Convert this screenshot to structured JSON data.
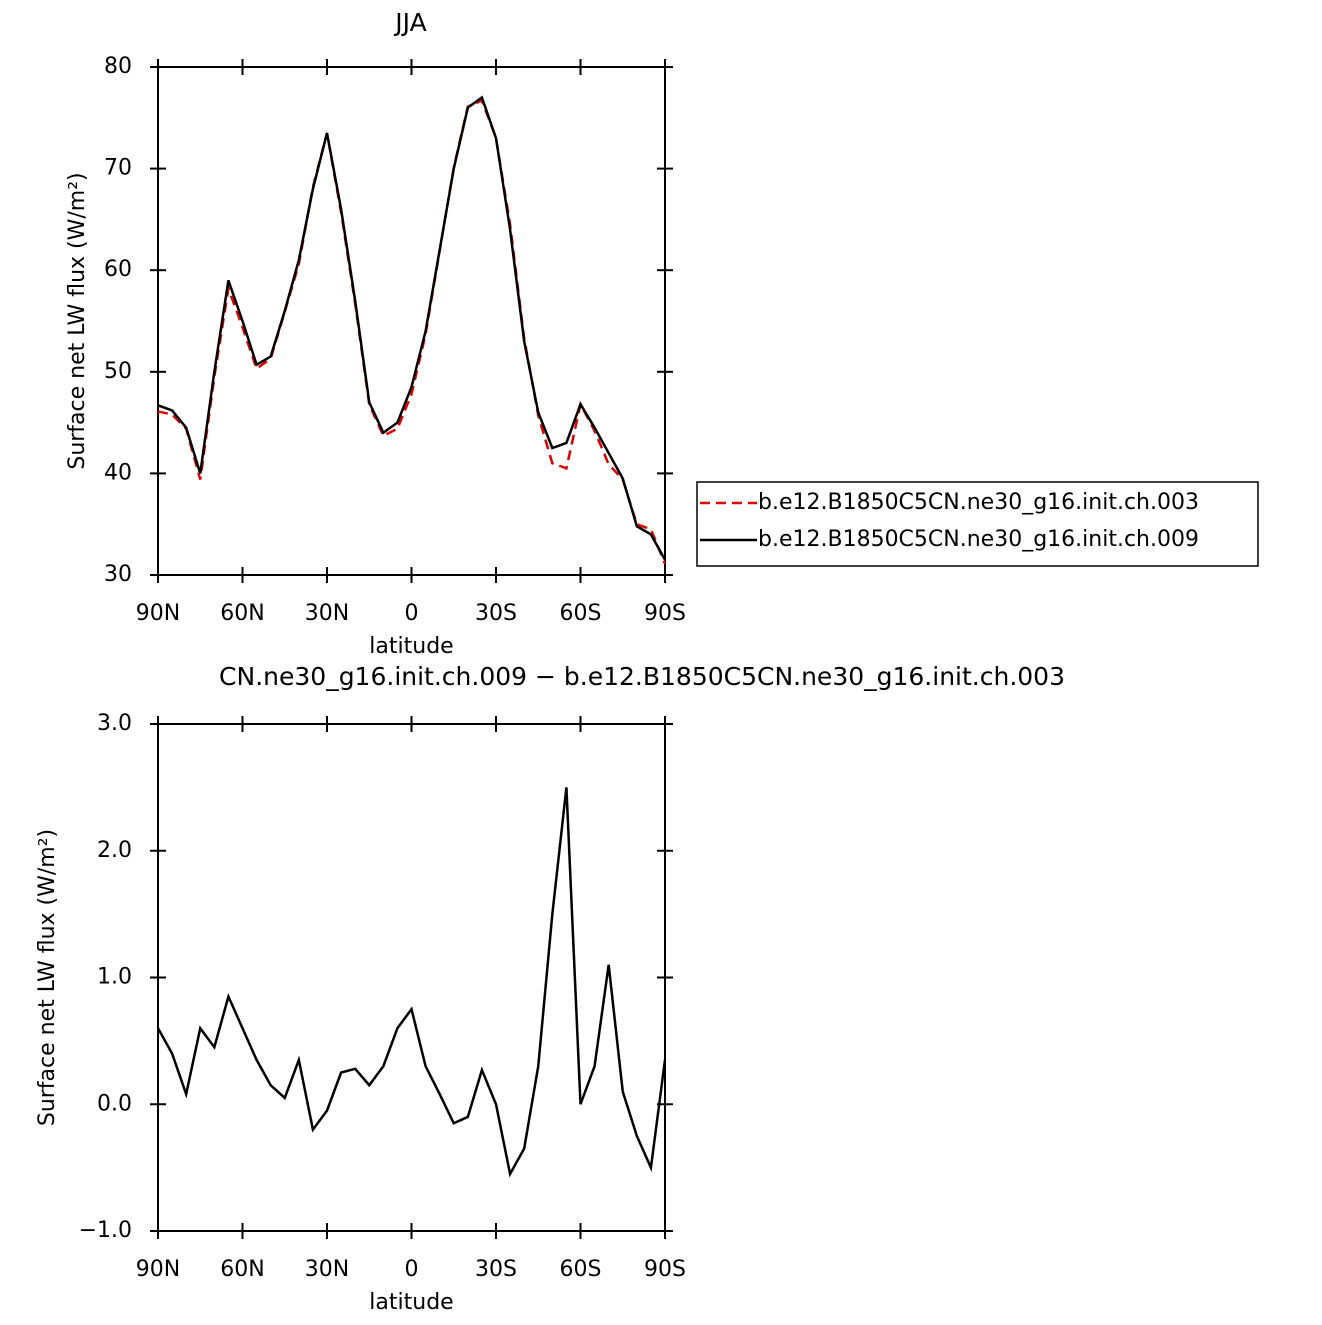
{
  "chart_data": [
    {
      "type": "line",
      "title": "JJA",
      "xlabel": "latitude",
      "ylabel": "Surface net LW flux (W/m²)",
      "x": [
        90,
        85,
        80,
        75,
        70,
        65,
        60,
        55,
        50,
        45,
        40,
        35,
        30,
        25,
        20,
        15,
        10,
        5,
        0,
        -5,
        -10,
        -15,
        -20,
        -25,
        -30,
        -35,
        -40,
        -45,
        -50,
        -55,
        -60,
        -65,
        -70,
        -75,
        -80,
        -85,
        -90
      ],
      "series": [
        {
          "name": "b.e12.B1850C5CN.ne30_g16.init.ch.003",
          "color": "#e00000",
          "dash": "dashed",
          "values": [
            46.1,
            45.8,
            44.4,
            39.4,
            49.5,
            58.2,
            54.4,
            50.3,
            51.3,
            55.9,
            60.6,
            68.2,
            73.5,
            65.7,
            56.7,
            46.8,
            43.7,
            44.4,
            47.8,
            53.7,
            61.9,
            70.1,
            76.1,
            76.7,
            73,
            64.5,
            53.3,
            45.7,
            41,
            40.5,
            46.8,
            44.2,
            40.9,
            39.4,
            35.0,
            34.5,
            31.1
          ]
        },
        {
          "name": "b.e12.B1850C5CN.ne30_g16.init.ch.009",
          "color": "#000000",
          "dash": "solid",
          "values": [
            46.7,
            46.2,
            44.5,
            40,
            50,
            59,
            55,
            50.7,
            51.5,
            56,
            61,
            68,
            73.5,
            66,
            57,
            47,
            44,
            45,
            48.5,
            54,
            62,
            70,
            76,
            77,
            73,
            64,
            53,
            46,
            42.5,
            43,
            46.8,
            44.5,
            42,
            39.5,
            34.8,
            34,
            31.5
          ]
        }
      ],
      "xlim": [
        90,
        -90
      ],
      "xticks": [
        {
          "value": 90,
          "label": "90N"
        },
        {
          "value": 60,
          "label": "60N"
        },
        {
          "value": 30,
          "label": "30N"
        },
        0,
        {
          "value": -30,
          "label": "30S"
        },
        {
          "value": -60,
          "label": "60S"
        },
        {
          "value": -90,
          "label": "90S"
        }
      ],
      "ylim": [
        30,
        80
      ],
      "yticks": [
        30,
        40,
        50,
        60,
        70,
        80
      ],
      "legend": "right"
    },
    {
      "type": "line",
      "title": "CN.ne30_g16.init.ch.009 − b.e12.B1850C5CN.ne30_g16.init.ch.003",
      "xlabel": "latitude",
      "ylabel": "Surface net LW flux (W/m²)",
      "x": [
        90,
        85,
        80,
        75,
        70,
        65,
        60,
        55,
        50,
        45,
        40,
        35,
        30,
        25,
        20,
        15,
        10,
        5,
        0,
        -5,
        -10,
        -15,
        -20,
        -25,
        -30,
        -35,
        -40,
        -45,
        -50,
        -55,
        -60,
        -65,
        -70,
        -75,
        -80,
        -85,
        -90
      ],
      "series": [
        {
          "color": "#000000",
          "dash": "solid",
          "values": [
            0.6,
            0.4,
            0.08,
            0.6,
            0.45,
            0.85,
            0.6,
            0.35,
            0.15,
            0.05,
            0.35,
            -0.2,
            -0.05,
            0.25,
            0.28,
            0.15,
            0.3,
            0.6,
            0.75,
            0.3,
            0.08,
            -0.15,
            -0.1,
            0.27,
            0.0,
            -0.55,
            -0.35,
            0.3,
            1.5,
            2.5,
            0.0,
            0.3,
            1.1,
            0.1,
            -0.25,
            -0.5,
            0.35
          ]
        }
      ],
      "xlim": [
        90,
        -90
      ],
      "xticks": [
        {
          "value": 90,
          "label": "90N"
        },
        {
          "value": 60,
          "label": "60N"
        },
        {
          "value": 30,
          "label": "30N"
        },
        0,
        {
          "value": -30,
          "label": "30S"
        },
        {
          "value": -60,
          "label": "60S"
        },
        {
          "value": -90,
          "label": "90S"
        }
      ],
      "ylim": [
        -1,
        3
      ],
      "yticks": [
        {
          "value": -1,
          "label": "−1.0"
        },
        {
          "value": 0,
          "label": "0.0"
        },
        {
          "value": 1,
          "label": "1.0"
        },
        {
          "value": 2,
          "label": "2.0"
        },
        {
          "value": 3,
          "label": "3.0"
        }
      ]
    }
  ]
}
